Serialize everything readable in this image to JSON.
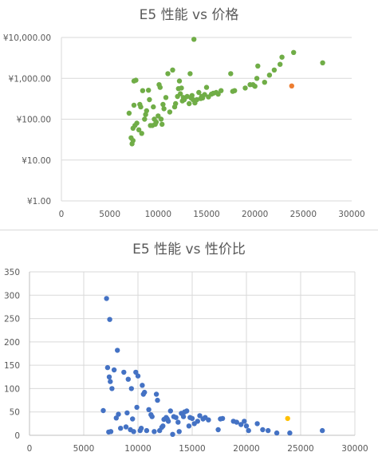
{
  "chart_data": [
    {
      "type": "scatter",
      "title": "E5 性能 vs 价格",
      "xlabel": "",
      "ylabel": "",
      "x_ticks": [
        "0",
        "5000",
        "10000",
        "15000",
        "20000",
        "25000",
        "30000"
      ],
      "y_ticks": [
        "¥1.00",
        "¥10.00",
        "¥100.00",
        "¥1,000.00",
        "¥10,000.00"
      ],
      "xlim": [
        0,
        30000
      ],
      "ylim": [
        1,
        10000
      ],
      "y_scale": "log",
      "grid": "horizontal",
      "legend": "none",
      "series": [
        {
          "color": "#70ad47",
          "points": [
            [
              7000,
              140
            ],
            [
              7200,
              35
            ],
            [
              7300,
              25
            ],
            [
              7400,
              30
            ],
            [
              7400,
              60
            ],
            [
              7500,
              220
            ],
            [
              7500,
              860
            ],
            [
              7600,
              70
            ],
            [
              7700,
              900
            ],
            [
              7800,
              80
            ],
            [
              8000,
              55
            ],
            [
              8100,
              230
            ],
            [
              8200,
              200
            ],
            [
              8300,
              45
            ],
            [
              8400,
              500
            ],
            [
              8600,
              100
            ],
            [
              8700,
              130
            ],
            [
              8800,
              160
            ],
            [
              9000,
              510
            ],
            [
              9100,
              300
            ],
            [
              9200,
              70
            ],
            [
              9400,
              70
            ],
            [
              9500,
              200
            ],
            [
              9600,
              100
            ],
            [
              9700,
              75
            ],
            [
              9800,
              85
            ],
            [
              10000,
              120
            ],
            [
              10100,
              700
            ],
            [
              10200,
              600
            ],
            [
              10300,
              100
            ],
            [
              10400,
              75
            ],
            [
              10500,
              230
            ],
            [
              10600,
              180
            ],
            [
              10800,
              340
            ],
            [
              11000,
              1300
            ],
            [
              11200,
              150
            ],
            [
              11500,
              1600
            ],
            [
              11700,
              200
            ],
            [
              11800,
              240
            ],
            [
              12000,
              360
            ],
            [
              12100,
              560
            ],
            [
              12200,
              860
            ],
            [
              12300,
              420
            ],
            [
              12400,
              580
            ],
            [
              12500,
              280
            ],
            [
              12600,
              340
            ],
            [
              12700,
              300
            ],
            [
              13000,
              360
            ],
            [
              13200,
              240
            ],
            [
              13300,
              1300
            ],
            [
              13400,
              330
            ],
            [
              13500,
              380
            ],
            [
              13600,
              300
            ],
            [
              13700,
              9000
            ],
            [
              13800,
              250
            ],
            [
              14000,
              300
            ],
            [
              14200,
              450
            ],
            [
              14400,
              320
            ],
            [
              14500,
              360
            ],
            [
              14600,
              330
            ],
            [
              14800,
              400
            ],
            [
              15000,
              600
            ],
            [
              15200,
              350
            ],
            [
              15500,
              410
            ],
            [
              15700,
              430
            ],
            [
              16000,
              450
            ],
            [
              16200,
              410
            ],
            [
              16500,
              500
            ],
            [
              17500,
              1300
            ],
            [
              17700,
              480
            ],
            [
              17900,
              500
            ],
            [
              19000,
              580
            ],
            [
              19500,
              700
            ],
            [
              19800,
              700
            ],
            [
              20000,
              640
            ],
            [
              20200,
              1000
            ],
            [
              20300,
              2000
            ],
            [
              21000,
              800
            ],
            [
              21500,
              1200
            ],
            [
              22000,
              1600
            ],
            [
              22600,
              2200
            ],
            [
              22800,
              3300
            ],
            [
              24000,
              4300
            ],
            [
              27000,
              2400
            ]
          ]
        },
        {
          "color": "#ed7d31",
          "points": [
            [
              23800,
              650
            ]
          ]
        }
      ]
    },
    {
      "type": "scatter",
      "title": "E5 性能 vs 性价比",
      "xlabel": "",
      "ylabel": "",
      "x_ticks": [
        "0",
        "5000",
        "10000",
        "15000",
        "20000",
        "25000",
        "30000"
      ],
      "y_ticks": [
        "0",
        "50",
        "100",
        "150",
        "200",
        "250",
        "300",
        "350"
      ],
      "xlim": [
        0,
        30000
      ],
      "ylim": [
        0,
        350
      ],
      "y_scale": "linear",
      "grid": "both",
      "legend": "none",
      "series": [
        {
          "color": "#4472c4",
          "points": [
            [
              6800,
              53
            ],
            [
              7100,
              293
            ],
            [
              7200,
              145
            ],
            [
              7300,
              7
            ],
            [
              7350,
              125
            ],
            [
              7400,
              248
            ],
            [
              7450,
              115
            ],
            [
              7500,
              8
            ],
            [
              7600,
              100
            ],
            [
              7800,
              140
            ],
            [
              8000,
              37
            ],
            [
              8100,
              182
            ],
            [
              8200,
              45
            ],
            [
              8400,
              15
            ],
            [
              8700,
              135
            ],
            [
              8900,
              18
            ],
            [
              9000,
              48
            ],
            [
              9100,
              120
            ],
            [
              9300,
              12
            ],
            [
              9400,
              100
            ],
            [
              9500,
              35
            ],
            [
              9600,
              8
            ],
            [
              9800,
              135
            ],
            [
              9900,
              60
            ],
            [
              10000,
              127
            ],
            [
              10200,
              10
            ],
            [
              10300,
              15
            ],
            [
              10400,
              107
            ],
            [
              10500,
              88
            ],
            [
              10600,
              92
            ],
            [
              10800,
              10
            ],
            [
              11000,
              55
            ],
            [
              11200,
              44
            ],
            [
              11300,
              40
            ],
            [
              11500,
              8
            ],
            [
              11700,
              88
            ],
            [
              11800,
              75
            ],
            [
              12000,
              10
            ],
            [
              12200,
              17
            ],
            [
              12300,
              20
            ],
            [
              12400,
              34
            ],
            [
              12600,
              38
            ],
            [
              12700,
              35
            ],
            [
              12800,
              30
            ],
            [
              13000,
              52
            ],
            [
              13200,
              2
            ],
            [
              13300,
              40
            ],
            [
              13500,
              38
            ],
            [
              13700,
              28
            ],
            [
              13800,
              8
            ],
            [
              14000,
              47
            ],
            [
              14200,
              40
            ],
            [
              14300,
              50
            ],
            [
              14500,
              52
            ],
            [
              14700,
              20
            ],
            [
              14800,
              38
            ],
            [
              15000,
              36
            ],
            [
              15200,
              25
            ],
            [
              15500,
              30
            ],
            [
              15700,
              42
            ],
            [
              16000,
              35
            ],
            [
              16200,
              38
            ],
            [
              16500,
              33
            ],
            [
              17400,
              12
            ],
            [
              17600,
              35
            ],
            [
              17800,
              36
            ],
            [
              18800,
              30
            ],
            [
              19100,
              28
            ],
            [
              19500,
              23
            ],
            [
              19800,
              30
            ],
            [
              20000,
              20
            ],
            [
              20200,
              10
            ],
            [
              21000,
              25
            ],
            [
              21500,
              12
            ],
            [
              22000,
              10
            ],
            [
              22800,
              5
            ],
            [
              24000,
              5
            ],
            [
              27000,
              10
            ]
          ]
        },
        {
          "color": "#ffc000",
          "points": [
            [
              23800,
              36
            ]
          ]
        }
      ]
    }
  ]
}
